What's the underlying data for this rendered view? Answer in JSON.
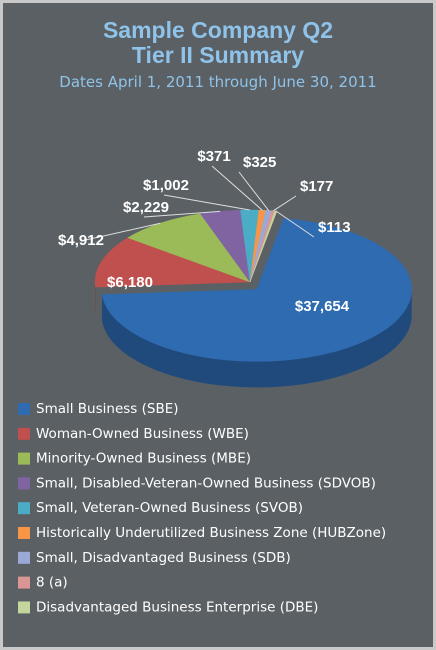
{
  "chart_data": {
    "type": "pie3d",
    "title": "Sample Company Q2",
    "subtitle": "Tier II Summary",
    "caption": "Dates April 1, 2011 through June 30, 2011",
    "categories": [
      "Small Business (SBE)",
      "Woman-Owned Business (WBE)",
      "Minority-Owned Business (MBE)",
      "Small, Disabled-Veteran-Owned Business (SDVOB)",
      "Small, Veteran-Owned Business (SVOB)",
      "Historically Underutilized Business Zone (HUBZone)",
      "Small, Disadvantaged Business (SDB)",
      "8 (a)",
      "Disadvantaged Business Enterprise (DBE)"
    ],
    "values": [
      37654,
      6180,
      4912,
      2229,
      1002,
      371,
      325,
      177,
      113
    ],
    "value_labels": [
      "$37,654",
      "$6,180",
      "$4,912",
      "$2,229",
      "$1,002",
      "$371",
      "$325",
      "$177",
      "$113"
    ],
    "colors": [
      "#2e6bb0",
      "#c0504d",
      "#9bbb59",
      "#8064a2",
      "#4bacc6",
      "#f79646",
      "#9aa9d6",
      "#d99694",
      "#c3d69b"
    ],
    "legend": "bottom"
  }
}
